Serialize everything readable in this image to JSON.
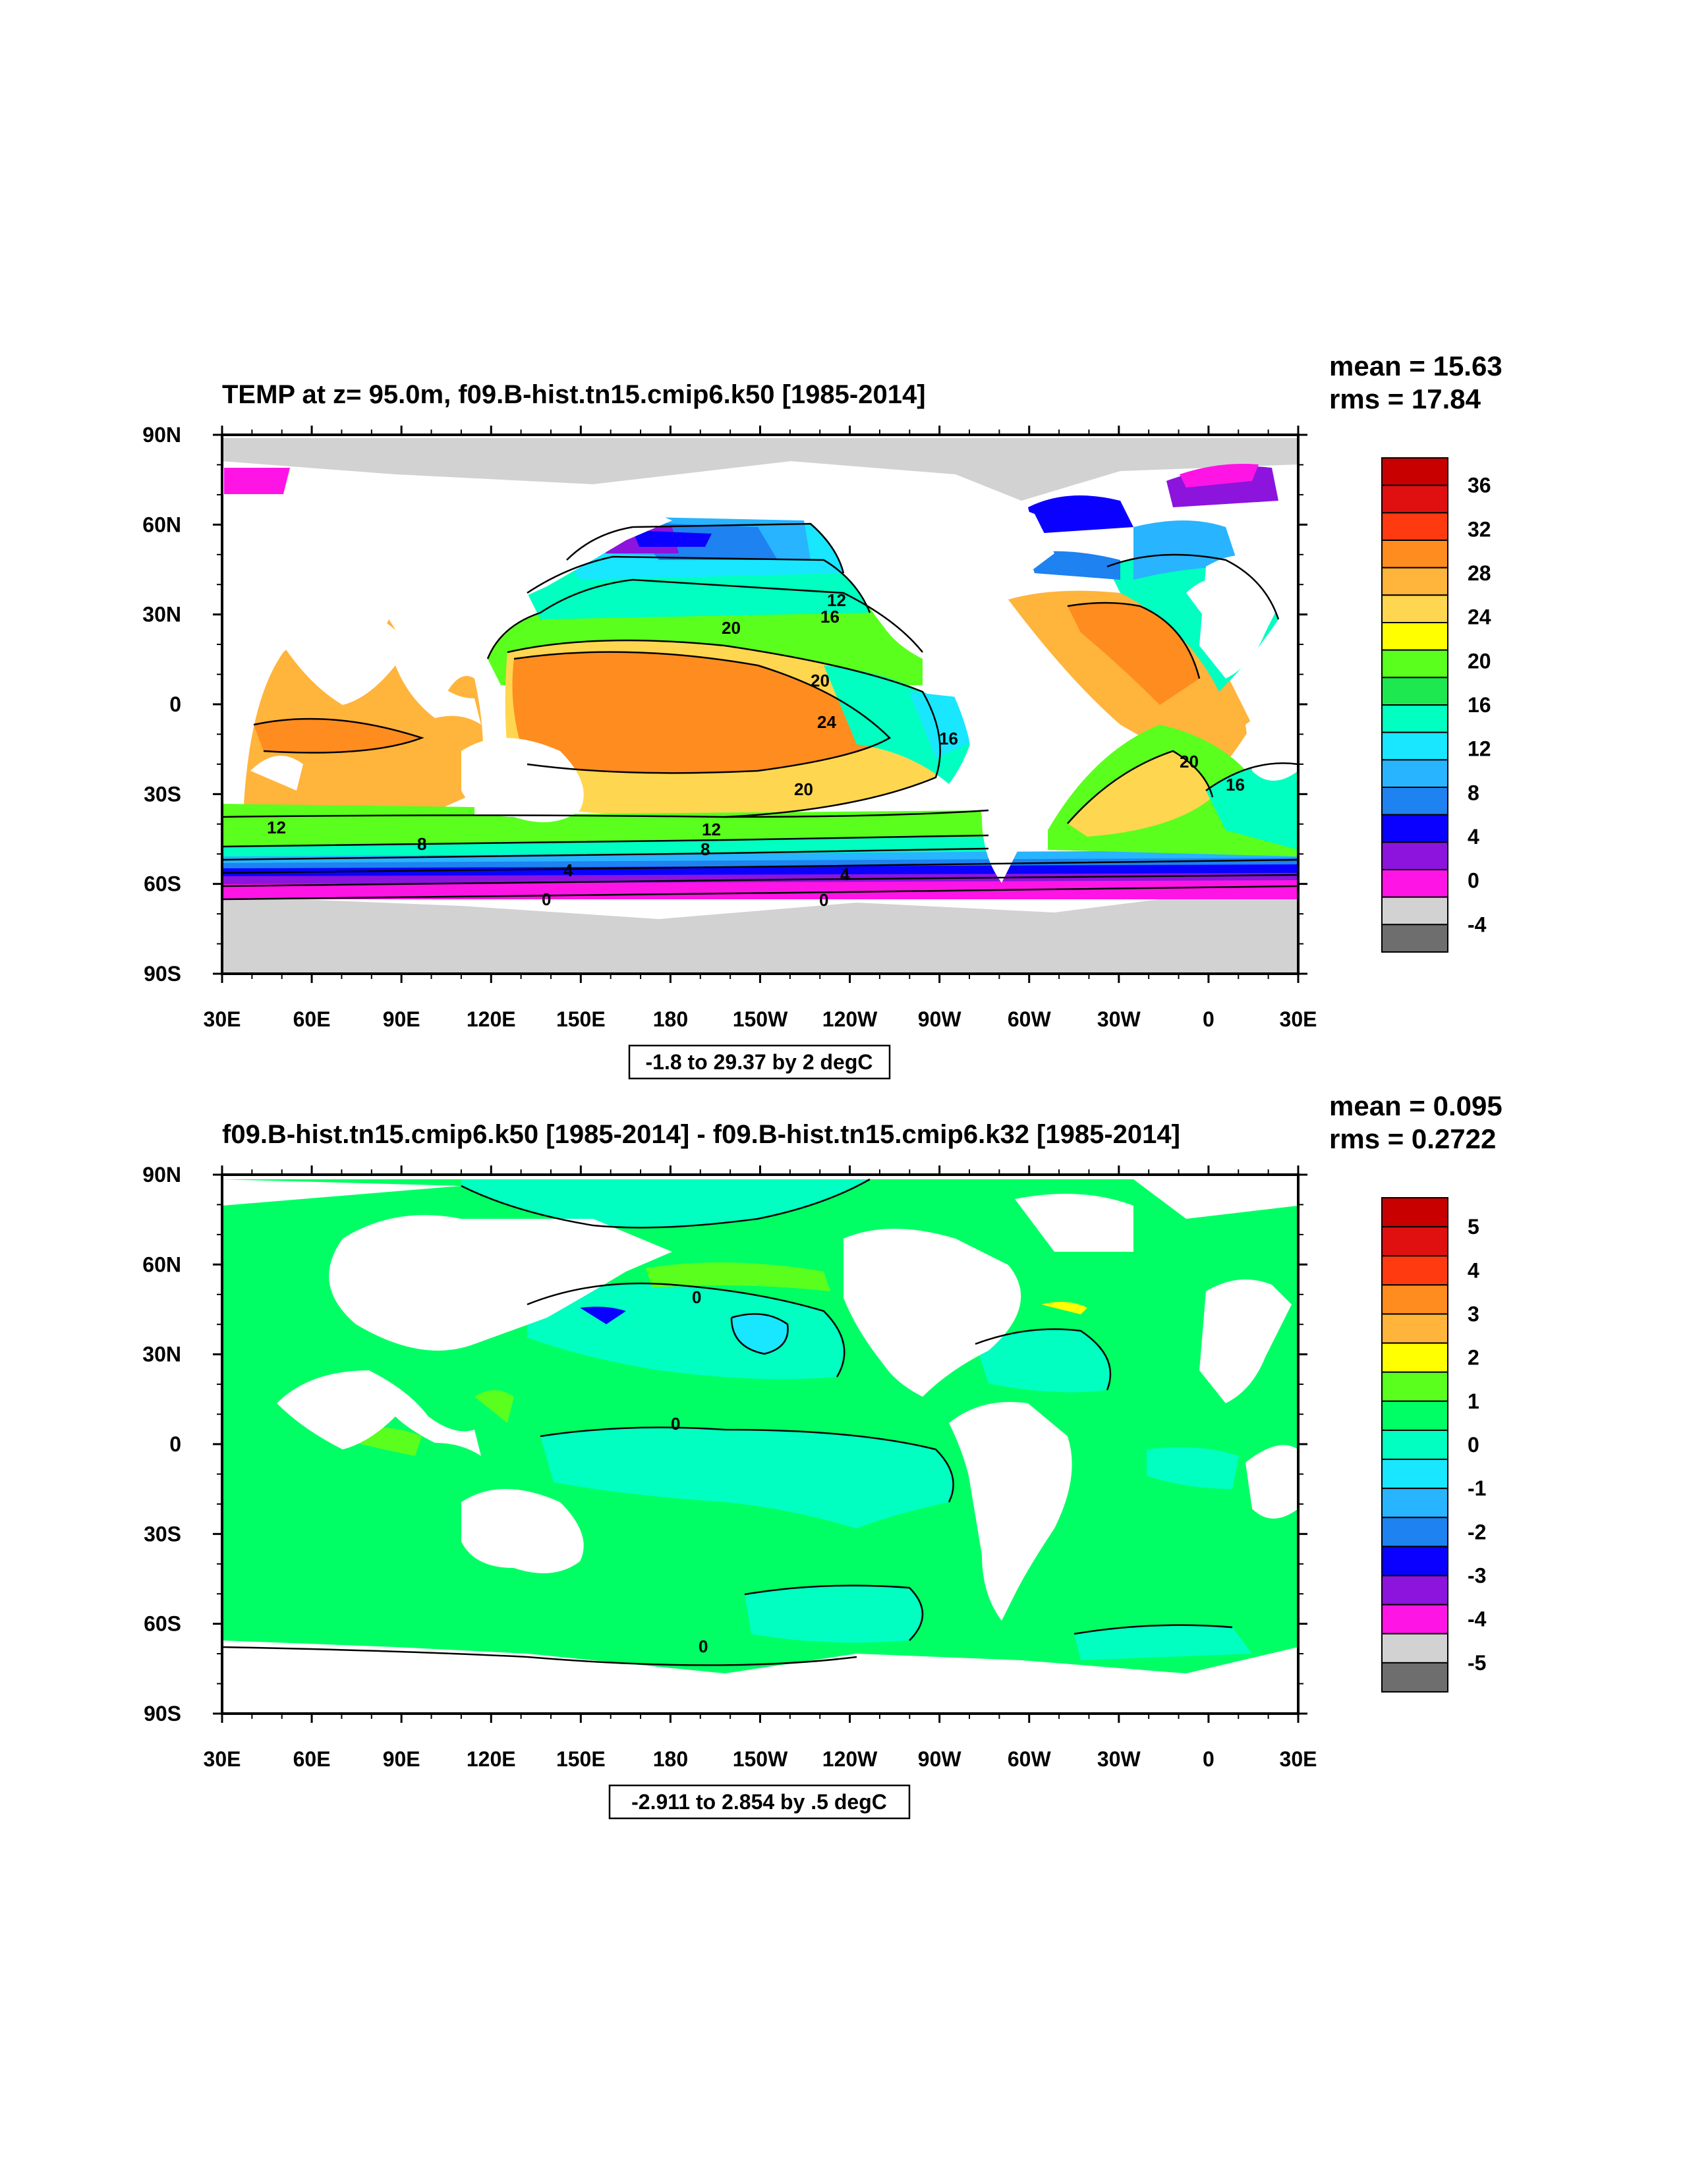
{
  "panels": [
    {
      "title": "TEMP at z=  95.0m, f09.B-hist.tn15.cmip6.k50 [1985-2014]",
      "mean_text": "mean = 15.63",
      "rms_text": "rms = 17.84",
      "info_text": "-1.8 to 29.37 by 2 degC",
      "colorbar_labels": [
        "36",
        "32",
        "28",
        "24",
        "20",
        "16",
        "12",
        "8",
        "4",
        "0",
        "-4"
      ],
      "colorbar_colors": [
        "#c80000",
        "#e01010",
        "#ff3a10",
        "#ff8c1e",
        "#ffb43c",
        "#ffd650",
        "#ffff00",
        "#5aff1e",
        "#1ee850",
        "#00ffc0",
        "#19e6ff",
        "#28b4ff",
        "#1e82f0",
        "#0a00ff",
        "#8c14dc",
        "#ff14e6",
        "#d2d2d2",
        "#6e6e6e"
      ],
      "contour_labels": [
        "12",
        "16",
        "20",
        "20",
        "24",
        "16",
        "20",
        "12",
        "8",
        "12",
        "8",
        "4",
        "4",
        "0",
        "0",
        "20",
        "16"
      ]
    },
    {
      "title": "f09.B-hist.tn15.cmip6.k50 [1985-2014] - f09.B-hist.tn15.cmip6.k32 [1985-2014]",
      "mean_text": "mean = 0.095",
      "rms_text": "rms = 0.2722",
      "info_text": "-2.911 to 2.854 by .5 degC",
      "colorbar_labels": [
        "5",
        "4",
        "3",
        "2",
        "1",
        "0",
        "-1",
        "-2",
        "-3",
        "-4",
        "-5"
      ],
      "colorbar_colors": [
        "#c80000",
        "#e01010",
        "#ff3a10",
        "#ff8c1e",
        "#ffb43c",
        "#ffff00",
        "#5aff1e",
        "#00ff64",
        "#00ffc0",
        "#19e6ff",
        "#28b4ff",
        "#1e82f0",
        "#0a00ff",
        "#8c14dc",
        "#ff14e6",
        "#d2d2d2",
        "#6e6e6e"
      ],
      "contour_labels": [
        "0",
        "0",
        "0"
      ]
    }
  ],
  "axes": {
    "lat_labels": [
      "90N",
      "60N",
      "30N",
      "0",
      "30S",
      "60S",
      "90S"
    ],
    "lon_labels": [
      "30E",
      "60E",
      "90E",
      "120E",
      "150E",
      "180",
      "150W",
      "120W",
      "90W",
      "60W",
      "30W",
      "0",
      "30E"
    ]
  },
  "colors": {
    "land": "#ffffff",
    "ice": "#d2d2d2"
  }
}
